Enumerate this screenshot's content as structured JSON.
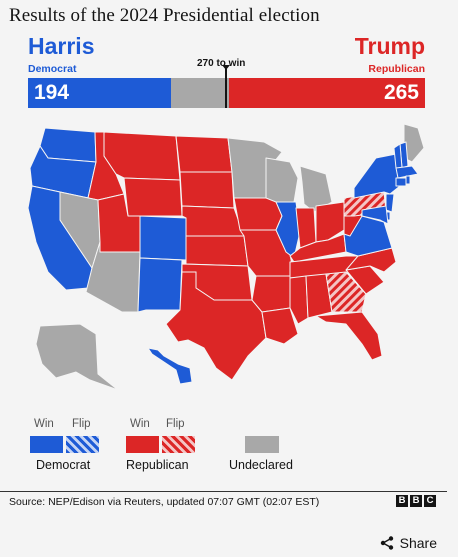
{
  "title": "Results of the 2024 Presidential election",
  "harris": {
    "name": "Harris",
    "party": "Democrat",
    "votes": 194
  },
  "trump": {
    "name": "Trump",
    "party": "Republican",
    "votes": 265
  },
  "to_win_label": "270 to win",
  "to_win": 270,
  "total": 538,
  "colors": {
    "dem": "#1e5bd6",
    "rep": "#dc2626",
    "undeclared": "#a8a8a8"
  },
  "legend": {
    "win": "Win",
    "flip": "Flip",
    "democrat": "Democrat",
    "republican": "Republican",
    "undeclared": "Undeclared"
  },
  "source": "Source: NEP/Edison via Reuters, updated 07:07 GMT (02:07 EST)",
  "brand": [
    "B",
    "B",
    "C"
  ],
  "share_label": "Share",
  "chart_data": {
    "type": "map",
    "states": {
      "WA": "dem",
      "OR": "dem",
      "CA": "dem",
      "ID": "rep",
      "NV": "undeclared",
      "MT": "rep",
      "WY": "rep",
      "UT": "rep",
      "AZ": "undeclared",
      "CO": "dem",
      "NM": "dem",
      "ND": "rep",
      "SD": "rep",
      "NE": "rep",
      "KS": "rep",
      "OK": "rep",
      "TX": "rep",
      "MN": "undeclared",
      "IA": "rep",
      "MO": "rep",
      "AR": "rep",
      "LA": "rep",
      "WI": "undeclared",
      "IL": "dem",
      "MI": "undeclared",
      "IN": "rep",
      "OH": "rep",
      "KY": "rep",
      "TN": "rep",
      "MS": "rep",
      "AL": "rep",
      "GA": "rep-flip",
      "FL": "rep",
      "SC": "rep",
      "NC": "rep",
      "VA": "dem",
      "WV": "rep",
      "PA": "rep-flip",
      "NY": "dem",
      "ME": "undeclared",
      "NH": "dem",
      "VT": "dem",
      "MA": "dem",
      "CT": "dem",
      "RI": "dem",
      "NJ": "dem",
      "DE": "dem",
      "MD": "dem",
      "AK": "undeclared",
      "HI": "dem"
    }
  }
}
